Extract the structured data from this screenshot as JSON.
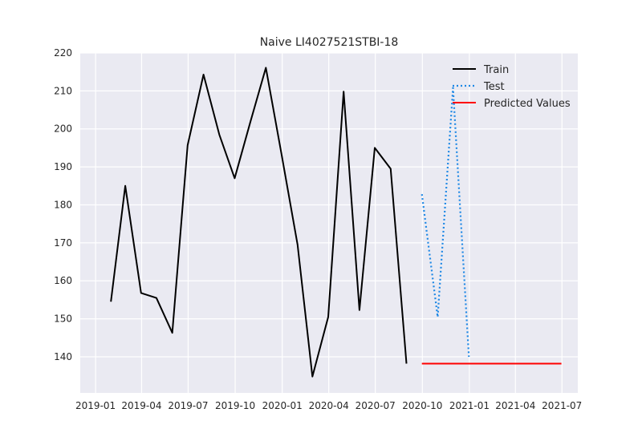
{
  "chart_data": {
    "type": "line",
    "title": "Naive LI4027521STBI-18",
    "xlabel": "",
    "ylabel": "",
    "xlim": [
      "2018-12-02",
      "2021-08-01"
    ],
    "ylim": [
      130.5,
      220
    ],
    "x_ticks": [
      "2019-01-01",
      "2019-04-01",
      "2019-07-01",
      "2019-10-01",
      "2020-01-01",
      "2020-04-01",
      "2020-07-01",
      "2020-10-01",
      "2021-01-01",
      "2021-04-01",
      "2021-07-01"
    ],
    "x_tick_labels": [
      "2019-01",
      "2019-04",
      "2019-07",
      "2019-10",
      "2020-01",
      "2020-04",
      "2020-07",
      "2020-10",
      "2021-01",
      "2021-04",
      "2021-07"
    ],
    "y_ticks": [
      140,
      150,
      160,
      170,
      180,
      190,
      200,
      210,
      220
    ],
    "grid": true,
    "legend_position": "top-right",
    "series": [
      {
        "name": "Train",
        "color": "#000000",
        "style": "solid",
        "x": [
          "2019-01-31",
          "2019-02-28",
          "2019-03-31",
          "2019-04-30",
          "2019-05-31",
          "2019-06-30",
          "2019-07-31",
          "2019-08-31",
          "2019-09-30",
          "2019-10-31",
          "2019-11-30",
          "2019-12-31",
          "2020-01-31",
          "2020-02-29",
          "2020-03-31",
          "2020-04-30",
          "2020-05-31",
          "2020-06-30",
          "2020-07-31",
          "2020-08-31"
        ],
        "values": [
          154.5,
          185,
          156.8,
          155.5,
          146.3,
          195.7,
          214.3,
          198.5,
          187,
          202,
          216.1,
          193,
          169.5,
          134.8,
          150.5,
          209.8,
          152.3,
          195,
          189.5,
          138.2
        ]
      },
      {
        "name": "Test",
        "color": "#1e88e5",
        "style": "dotted",
        "x": [
          "2020-09-30",
          "2020-10-31",
          "2020-11-30",
          "2020-12-31"
        ],
        "values": [
          182.8,
          150.5,
          210.8,
          140
        ]
      },
      {
        "name": "Predicted Values",
        "color": "#ff0000",
        "style": "solid",
        "x": [
          "2020-09-30",
          "2021-06-30"
        ],
        "values": [
          138.2,
          138.2
        ]
      }
    ]
  }
}
